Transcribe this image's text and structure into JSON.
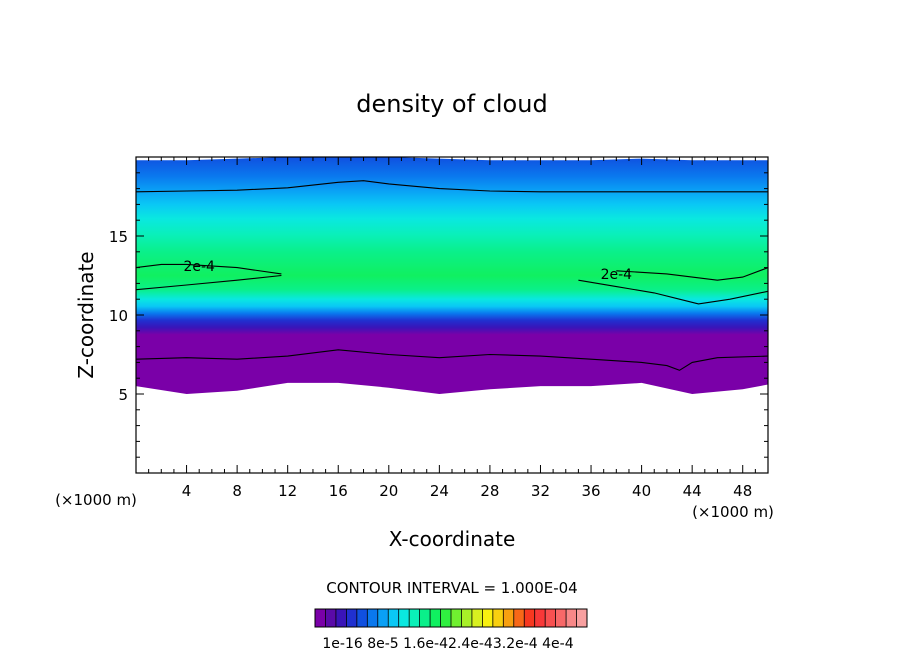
{
  "chart_data": {
    "type": "heatmap",
    "title": "density of cloud",
    "xlabel": "X-coordinate",
    "ylabel": "Z-coordinate",
    "x_unit_left": "(×1000 m)",
    "x_unit_right": "(×1000 m)",
    "xlim": [
      0,
      50
    ],
    "ylim": [
      0,
      20
    ],
    "x_ticks": [
      "4",
      "8",
      "12",
      "16",
      "20",
      "24",
      "28",
      "32",
      "36",
      "40",
      "44",
      "48"
    ],
    "y_ticks": [
      "5",
      "10",
      "15"
    ],
    "contour_interval_text": "CONTOUR INTERVAL = 1.000E-04",
    "contour_labels": [
      {
        "text": "2e-4",
        "x": 5.0,
        "z": 13.1
      },
      {
        "text": "2e-4",
        "x": 38.0,
        "z": 12.6
      }
    ],
    "colorbar": {
      "tick_labels_text": "1e-16 8e-5 1.6e-42.4e-43.2e-4 4e-4",
      "colors": [
        "#7a00a8",
        "#5a0aa8",
        "#3a14b8",
        "#2030d0",
        "#1050e0",
        "#0a78ee",
        "#0aa0f5",
        "#0ac8f5",
        "#0ae8e0",
        "#0af0b8",
        "#0af08a",
        "#10f060",
        "#30f040",
        "#70f030",
        "#a8f028",
        "#d8f020",
        "#f8f010",
        "#f8d010",
        "#f8a010",
        "#f86818",
        "#f83820",
        "#f83838",
        "#f85050",
        "#f86868",
        "#f88888",
        "#f8a0a0"
      ]
    },
    "profile": {
      "x": [
        0,
        4,
        8,
        12,
        16,
        20,
        24,
        28,
        32,
        36,
        40,
        44,
        48,
        50
      ],
      "z_bottom": [
        5.5,
        5.0,
        5.2,
        5.7,
        5.7,
        5.4,
        5.0,
        5.3,
        5.5,
        5.5,
        5.7,
        5.0,
        5.3,
        5.6
      ],
      "z_top": [
        19.8,
        19.8,
        19.9,
        20.0,
        20.0,
        20.0,
        19.9,
        19.8,
        19.8,
        19.8,
        19.9,
        19.8,
        19.8,
        19.8
      ]
    },
    "contours": [
      {
        "level": "1e-4",
        "x": [
          0,
          4,
          8,
          12,
          16,
          18,
          20,
          24,
          28,
          32,
          36,
          40,
          44,
          48,
          50
        ],
        "z": [
          17.8,
          17.85,
          17.9,
          18.05,
          18.4,
          18.5,
          18.3,
          18.0,
          17.85,
          17.8,
          17.8,
          17.8,
          17.8,
          17.8,
          17.8
        ]
      },
      {
        "level": "1e-4",
        "x": [
          0,
          4,
          8,
          12,
          16,
          20,
          24,
          28,
          32,
          36,
          40,
          42,
          43,
          44,
          46,
          50
        ],
        "z": [
          7.2,
          7.3,
          7.2,
          7.4,
          7.8,
          7.5,
          7.3,
          7.5,
          7.4,
          7.2,
          7.0,
          6.8,
          6.5,
          7.0,
          7.3,
          7.4
        ]
      },
      {
        "level": "2e-4",
        "x": [
          0,
          2,
          4,
          8,
          11.5
        ],
        "z": [
          13.0,
          13.2,
          13.2,
          13.0,
          12.6
        ]
      },
      {
        "level": "2e-4",
        "x": [
          0,
          4,
          8,
          11.5
        ],
        "z": [
          11.6,
          11.9,
          12.2,
          12.5
        ]
      },
      {
        "level": "2e-4",
        "x": [
          38,
          42,
          44,
          46,
          48,
          50
        ],
        "z": [
          12.8,
          12.6,
          12.4,
          12.2,
          12.4,
          13.0
        ]
      },
      {
        "level": "2e-4",
        "x": [
          35,
          38,
          41,
          43,
          44.5,
          47,
          50
        ],
        "z": [
          12.2,
          11.8,
          11.4,
          11.0,
          10.7,
          11.0,
          11.5
        ]
      }
    ]
  }
}
